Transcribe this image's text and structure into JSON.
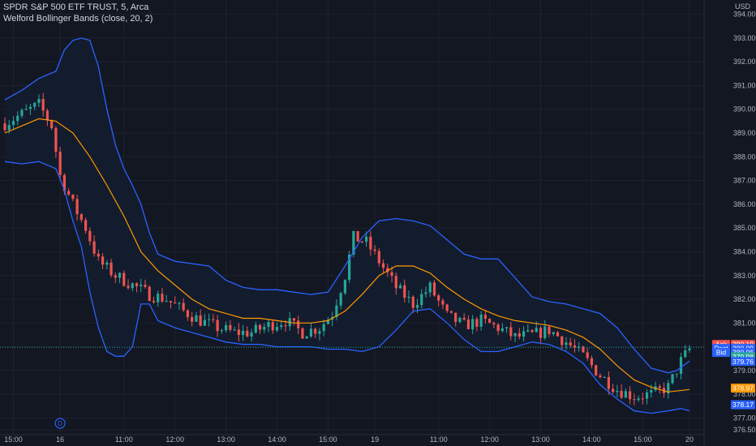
{
  "header": {
    "symbol_title": "SPDR S&P 500 ETF TRUST, 5, Arca",
    "indicator_title": "Welford Bollinger Bands (close, 20, 2)"
  },
  "colors": {
    "background": "#131722",
    "up": "#26a69a",
    "down": "#ef5350",
    "basis": "#ff9800",
    "bands": "#2962ff",
    "band_fill": "#131c2e",
    "ask": "#ef5350",
    "bid": "#2962ff",
    "post": "#2962ff",
    "last": "#26a69a"
  },
  "chart_data": {
    "type": "candlestick",
    "currency_label": "USD",
    "y_axis": {
      "range": [
        376.3,
        394.6
      ],
      "ticks": [
        "394.00",
        "393.00",
        "392.00",
        "391.00",
        "390.00",
        "389.00",
        "388.00",
        "387.00",
        "386.00",
        "385.00",
        "384.00",
        "383.00",
        "382.00",
        "381.00",
        "380.00",
        "379.00",
        "378.00",
        "377.00",
        "376.50"
      ]
    },
    "x_axis": {
      "ticks": [
        {
          "label": "15:00",
          "t": 2
        },
        {
          "label": "16",
          "t": 13
        },
        {
          "label": "11:00",
          "t": 28
        },
        {
          "label": "12:00",
          "t": 40
        },
        {
          "label": "13:00",
          "t": 52
        },
        {
          "label": "14:00",
          "t": 64
        },
        {
          "label": "15:00",
          "t": 76
        },
        {
          "label": "19",
          "t": 87
        },
        {
          "label": "11:00",
          "t": 102
        },
        {
          "label": "12:00",
          "t": 114
        },
        {
          "label": "13:00",
          "t": 126
        },
        {
          "label": "14:00",
          "t": 138
        },
        {
          "label": "15:00",
          "t": 150
        },
        {
          "label": "20",
          "t": 161
        }
      ],
      "bars_total": 162
    },
    "dividend_marker": {
      "label": "D",
      "t": 13
    },
    "price_path": [
      [
        0,
        389.4
      ],
      [
        4,
        389.8
      ],
      [
        8,
        390.2
      ],
      [
        11,
        389.3
      ],
      [
        13,
        387.2
      ],
      [
        16,
        386.0
      ],
      [
        19,
        385.0
      ],
      [
        22,
        383.6
      ],
      [
        26,
        383.0
      ],
      [
        30,
        382.6
      ],
      [
        34,
        382.2
      ],
      [
        38,
        382.0
      ],
      [
        42,
        381.5
      ],
      [
        46,
        381.1
      ],
      [
        50,
        380.8
      ],
      [
        54,
        380.6
      ],
      [
        58,
        380.6
      ],
      [
        62,
        380.9
      ],
      [
        66,
        381.1
      ],
      [
        70,
        380.6
      ],
      [
        74,
        380.8
      ],
      [
        77,
        381.4
      ],
      [
        80,
        383.0
      ],
      [
        82,
        384.6
      ],
      [
        85,
        384.4
      ],
      [
        88,
        383.6
      ],
      [
        92,
        382.5
      ],
      [
        96,
        381.8
      ],
      [
        100,
        382.5
      ],
      [
        104,
        381.3
      ],
      [
        108,
        380.9
      ],
      [
        112,
        381.1
      ],
      [
        116,
        380.8
      ],
      [
        120,
        380.4
      ],
      [
        124,
        380.5
      ],
      [
        128,
        380.7
      ],
      [
        132,
        380.2
      ],
      [
        136,
        379.6
      ],
      [
        140,
        378.8
      ],
      [
        144,
        378.2
      ],
      [
        148,
        377.9
      ],
      [
        152,
        378.0
      ],
      [
        156,
        378.3
      ],
      [
        159,
        379.4
      ],
      [
        161,
        379.9
      ]
    ],
    "basis_path": [
      [
        0,
        389.0
      ],
      [
        4,
        389.3
      ],
      [
        8,
        389.6
      ],
      [
        12,
        389.5
      ],
      [
        16,
        389.0
      ],
      [
        20,
        388.0
      ],
      [
        24,
        386.8
      ],
      [
        28,
        385.5
      ],
      [
        32,
        384.0
      ],
      [
        36,
        383.2
      ],
      [
        40,
        382.6
      ],
      [
        44,
        382.0
      ],
      [
        48,
        381.6
      ],
      [
        52,
        381.4
      ],
      [
        56,
        381.2
      ],
      [
        60,
        381.2
      ],
      [
        64,
        381.1
      ],
      [
        68,
        381.0
      ],
      [
        72,
        381.0
      ],
      [
        76,
        381.1
      ],
      [
        80,
        381.5
      ],
      [
        84,
        382.2
      ],
      [
        88,
        383.0
      ],
      [
        92,
        383.4
      ],
      [
        96,
        383.4
      ],
      [
        100,
        383.1
      ],
      [
        104,
        382.5
      ],
      [
        108,
        382.0
      ],
      [
        112,
        381.6
      ],
      [
        116,
        381.3
      ],
      [
        120,
        381.1
      ],
      [
        124,
        381.0
      ],
      [
        128,
        380.9
      ],
      [
        132,
        380.7
      ],
      [
        136,
        380.4
      ],
      [
        140,
        379.9
      ],
      [
        144,
        379.2
      ],
      [
        148,
        378.6
      ],
      [
        152,
        378.3
      ],
      [
        156,
        378.1
      ],
      [
        161,
        378.2
      ]
    ],
    "upper_band_path": [
      [
        0,
        390.4
      ],
      [
        4,
        390.8
      ],
      [
        8,
        391.3
      ],
      [
        12,
        391.6
      ],
      [
        14,
        392.5
      ],
      [
        16,
        392.9
      ],
      [
        18,
        393.0
      ],
      [
        20,
        392.9
      ],
      [
        22,
        391.8
      ],
      [
        24,
        390.0
      ],
      [
        26,
        388.5
      ],
      [
        28,
        387.5
      ],
      [
        30,
        386.8
      ],
      [
        32,
        386.0
      ],
      [
        34,
        384.8
      ],
      [
        36,
        383.9
      ],
      [
        40,
        383.6
      ],
      [
        44,
        383.5
      ],
      [
        48,
        383.4
      ],
      [
        52,
        382.8
      ],
      [
        56,
        382.5
      ],
      [
        60,
        382.4
      ],
      [
        64,
        382.4
      ],
      [
        68,
        382.3
      ],
      [
        72,
        382.2
      ],
      [
        76,
        382.3
      ],
      [
        80,
        383.4
      ],
      [
        84,
        384.6
      ],
      [
        88,
        385.3
      ],
      [
        92,
        385.4
      ],
      [
        96,
        385.3
      ],
      [
        100,
        385.1
      ],
      [
        104,
        384.5
      ],
      [
        108,
        383.9
      ],
      [
        112,
        383.7
      ],
      [
        116,
        383.7
      ],
      [
        120,
        382.9
      ],
      [
        124,
        382.1
      ],
      [
        128,
        381.9
      ],
      [
        132,
        381.8
      ],
      [
        136,
        381.6
      ],
      [
        140,
        381.4
      ],
      [
        144,
        380.8
      ],
      [
        148,
        379.9
      ],
      [
        152,
        379.1
      ],
      [
        156,
        378.9
      ],
      [
        158,
        379.0
      ],
      [
        161,
        379.4
      ]
    ],
    "lower_band_path": [
      [
        0,
        387.8
      ],
      [
        4,
        387.7
      ],
      [
        8,
        387.8
      ],
      [
        12,
        387.5
      ],
      [
        14,
        386.6
      ],
      [
        16,
        385.3
      ],
      [
        18,
        384.2
      ],
      [
        20,
        382.3
      ],
      [
        22,
        380.8
      ],
      [
        24,
        379.8
      ],
      [
        26,
        379.6
      ],
      [
        28,
        379.6
      ],
      [
        30,
        380.0
      ],
      [
        32,
        381.8
      ],
      [
        34,
        381.8
      ],
      [
        36,
        381.1
      ],
      [
        40,
        380.8
      ],
      [
        44,
        380.6
      ],
      [
        48,
        380.4
      ],
      [
        52,
        380.2
      ],
      [
        56,
        380.1
      ],
      [
        60,
        380.1
      ],
      [
        64,
        380.0
      ],
      [
        68,
        380.0
      ],
      [
        72,
        380.0
      ],
      [
        76,
        379.9
      ],
      [
        80,
        379.9
      ],
      [
        84,
        379.8
      ],
      [
        88,
        380.0
      ],
      [
        92,
        380.7
      ],
      [
        96,
        381.5
      ],
      [
        100,
        381.6
      ],
      [
        104,
        381.0
      ],
      [
        108,
        380.3
      ],
      [
        112,
        379.8
      ],
      [
        116,
        379.8
      ],
      [
        120,
        380.0
      ],
      [
        124,
        380.2
      ],
      [
        128,
        380.1
      ],
      [
        132,
        379.8
      ],
      [
        136,
        379.3
      ],
      [
        140,
        378.4
      ],
      [
        144,
        377.8
      ],
      [
        148,
        377.3
      ],
      [
        152,
        377.2
      ],
      [
        156,
        377.3
      ],
      [
        159,
        377.4
      ],
      [
        161,
        377.3
      ]
    ],
    "price_tags": [
      {
        "label": "Ask",
        "value": "380.10",
        "color": "#ef5350",
        "price": 380.1
      },
      {
        "label": "Post",
        "value": "380.09",
        "color": "#2962ff",
        "price": 379.93
      },
      {
        "label": "Bid",
        "value": "380.06",
        "color": "#2962ff",
        "price": 379.76
      },
      {
        "label": "",
        "value": "379.98",
        "color": "#26a69a",
        "price": 379.58
      },
      {
        "label": "",
        "value": "379.76",
        "color": "#2962ff",
        "price": 379.38
      },
      {
        "label": "",
        "value": "378.97",
        "color": "#ff9800",
        "price": 378.26
      },
      {
        "label": "",
        "value": "378.17",
        "color": "#2962ff",
        "price": 377.56
      }
    ],
    "last_price": 379.98
  }
}
